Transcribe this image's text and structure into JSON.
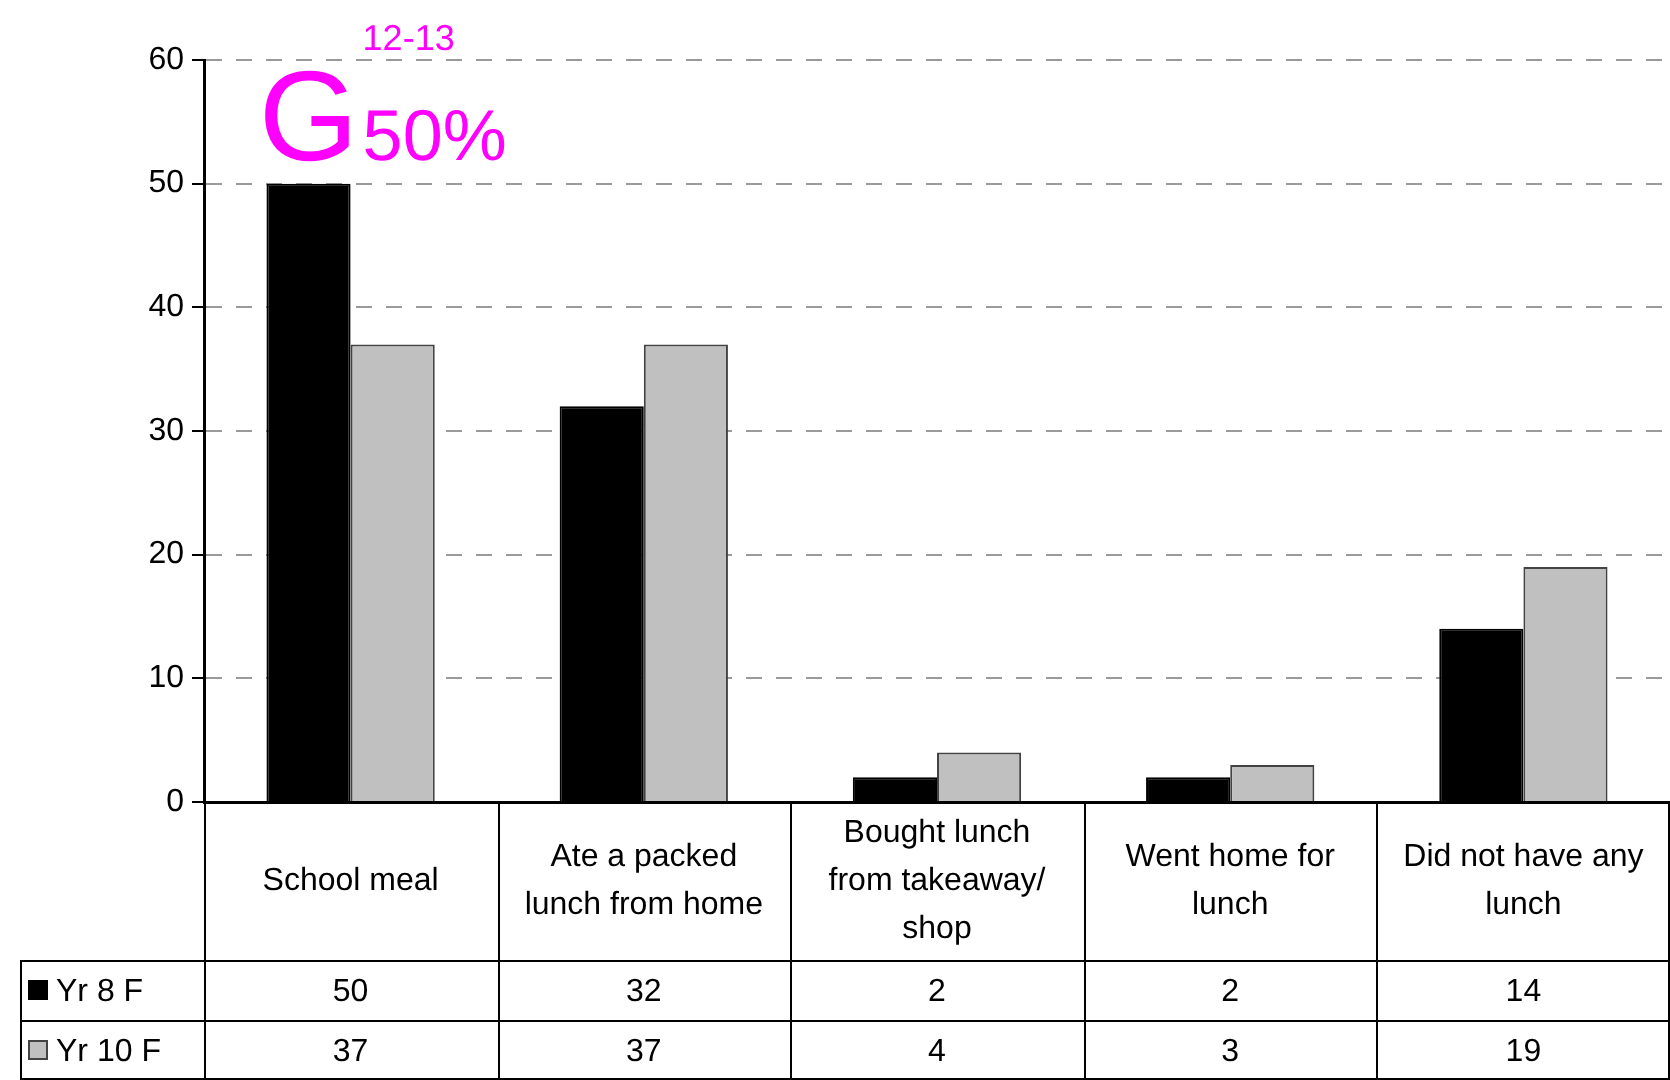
{
  "chart_data": {
    "type": "bar",
    "categories": [
      "School meal",
      "Ate a packed lunch from home",
      "Bought lunch from takeaway/ shop",
      "Went home for lunch",
      "Did not have any lunch"
    ],
    "series": [
      {
        "name": "Yr 8 F",
        "color": "#000000",
        "values": [
          50,
          32,
          2,
          2,
          14
        ]
      },
      {
        "name": "Yr 10 F",
        "color": "#c0c0c0",
        "values": [
          37,
          37,
          4,
          3,
          19
        ]
      }
    ],
    "ylim": [
      0,
      60
    ],
    "yticks": [
      0,
      10,
      20,
      30,
      40,
      50,
      60
    ],
    "grid": "y",
    "legend": "bottom",
    "data_labels": true,
    "annotations": [
      {
        "text": "50%",
        "x": "School meal",
        "y": 50
      },
      "12-13",
      "G"
    ]
  }
}
